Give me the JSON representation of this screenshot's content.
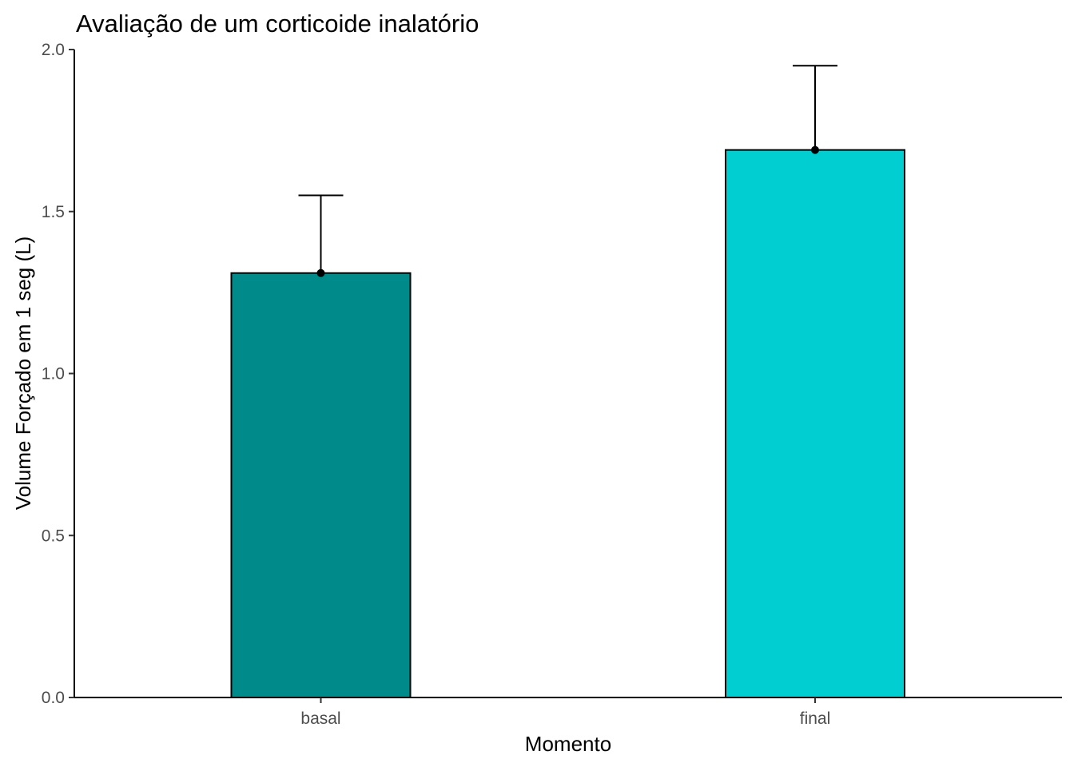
{
  "chart_data": {
    "type": "bar",
    "title": "Avaliação de um corticoide inalatório",
    "xlabel": "Momento",
    "ylabel": "Volume Forçado em 1 seg (L)",
    "categories": [
      "basal",
      "final"
    ],
    "values": [
      1.31,
      1.69
    ],
    "error_upper": [
      1.55,
      1.95
    ],
    "colors": [
      "#008B8B",
      "#00CED1"
    ],
    "ylim": [
      0,
      2.0
    ],
    "yticks": [
      "0.0",
      "0.5",
      "1.0",
      "1.5",
      "2.0"
    ],
    "grid": false,
    "legend": "none"
  }
}
